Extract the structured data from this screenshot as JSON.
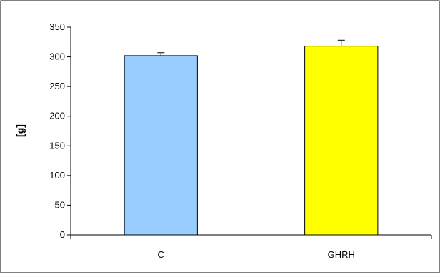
{
  "chart_data": {
    "type": "bar",
    "title": "",
    "xlabel": "",
    "ylabel": "[g]",
    "ylim": [
      0,
      350
    ],
    "yticks": [
      0,
      50,
      100,
      150,
      200,
      250,
      300,
      350
    ],
    "ytick_labels": [
      "0",
      "50",
      "100",
      "150",
      "200",
      "250",
      "300",
      "350"
    ],
    "categories": [
      "C",
      "GHRH"
    ],
    "values": [
      302,
      318
    ],
    "errors": [
      5,
      10
    ],
    "bar_colors": [
      "#99ccff",
      "#ffff00"
    ],
    "grid": false,
    "legend": "none"
  }
}
